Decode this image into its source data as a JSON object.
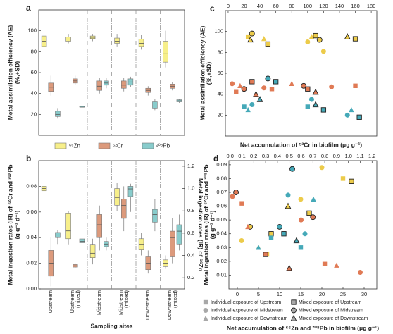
{
  "chart_data": [
    {
      "type": "box",
      "panel_label": "a",
      "ylabel": [
        "Metal assimilation efficiency (AE)",
        "(%,+SD)"
      ],
      "ylim": [
        0,
        120
      ],
      "yticks": [
        20,
        40,
        60,
        80,
        100
      ],
      "series": [
        {
          "name": "⁶⁶Zn",
          "color": "#f7ef8a",
          "values": [
            [
              82,
              85,
              90,
              95,
              100
            ],
            [
              88,
              90,
              92,
              94,
              97
            ],
            [
              90,
              92,
              93,
              95,
              97
            ],
            [
              85,
              88,
              90,
              93,
              97
            ],
            [
              82,
              85,
              88,
              92,
              96
            ],
            [
              65,
              70,
              78,
              90,
              100
            ]
          ]
        },
        {
          "name": "⁵²Cr",
          "color": "#dc9a7c",
          "values": [
            [
              38,
              42,
              46,
              50,
              57
            ],
            [
              48,
              50,
              52,
              54,
              57
            ],
            [
              40,
              43,
              47,
              52,
              55
            ],
            [
              42,
              45,
              48,
              52,
              55
            ],
            [
              38,
              41,
              43,
              45,
              47
            ],
            [
              43,
              45,
              47,
              49,
              51
            ]
          ]
        },
        {
          "name": "²⁰⁸Pb",
          "color": "#88cccc",
          "values": [
            [
              16,
              18,
              20,
              23,
              26
            ],
            [
              26,
              27,
              27,
              28,
              29
            ],
            [
              45,
              48,
              50,
              52,
              55
            ],
            [
              46,
              48,
              51,
              54,
              56
            ],
            [
              24,
              26,
              28,
              32,
              35
            ],
            [
              31,
              32,
              33,
              34,
              35
            ]
          ]
        }
      ]
    },
    {
      "type": "box",
      "panel_label": "b",
      "ylabel": [
        "Metal ingestion rates (IR) of ⁵²Cr and ²⁰⁸Pb",
        "(g g⁻¹ d⁻¹)"
      ],
      "y2label": "Metal ingestion rates (IR) of ⁶⁶Zn",
      "xlabel": "Sampling sites",
      "categories": [
        "Upstream",
        "Upstream (mixed)",
        "Midstream",
        "Midstream (mixed)",
        "Downstream",
        "Downstream (mixed)"
      ],
      "ylim": [
        0,
        0.1
      ],
      "yticks": [
        {
          "value": 0,
          "label": "0.00"
        },
        {
          "value": 0.02,
          "label": "0.02"
        },
        {
          "value": 0.04,
          "label": "0.04"
        },
        {
          "value": 0.06,
          "label": "0.06"
        },
        {
          "value": 0.08,
          "label": "0.08"
        }
      ],
      "y2lim": [
        0.1,
        1.25
      ],
      "y2ticks": [
        0.2,
        0.4,
        0.6,
        0.8,
        {
          "value": 1,
          "label": "1.0"
        },
        1.2
      ],
      "series": [
        {
          "color": "#f7ef8a",
          "axis": "y2",
          "values": [
            [
              0.96,
              0.98,
              1.0,
              1.02,
              1.08
            ],
            [
              0.5,
              0.55,
              0.62,
              0.78,
              0.8
            ],
            [
              0.32,
              0.38,
              0.42,
              0.5,
              0.55
            ],
            [
              0.8,
              0.85,
              0.92,
              1.0,
              1.05
            ],
            [
              0.4,
              0.45,
              0.5,
              0.55,
              0.6
            ],
            [
              0.28,
              0.3,
              0.33,
              0.36,
              0.4
            ]
          ]
        },
        {
          "color": "#dc9a7c",
          "values": [
            [
              0.002,
              0.01,
              0.02,
              0.03,
              0.04
            ],
            [
              0.016,
              0.017,
              0.018,
              0.019,
              0.02
            ],
            [
              0.03,
              0.04,
              0.05,
              0.058,
              0.065
            ],
            [
              0.045,
              0.055,
              0.065,
              0.07,
              0.08
            ],
            [
              0.012,
              0.015,
              0.02,
              0.025,
              0.03
            ],
            [
              0.02,
              0.025,
              0.04,
              0.045,
              0.055
            ]
          ]
        },
        {
          "color": "#88cccc",
          "values": [
            [
              0.035,
              0.04,
              0.042,
              0.044,
              0.046
            ],
            [
              0.035,
              0.036,
              0.037,
              0.039,
              0.04
            ],
            [
              0.03,
              0.033,
              0.035,
              0.037,
              0.04
            ],
            [
              0.06,
              0.072,
              0.078,
              0.08,
              0.082
            ],
            [
              0.045,
              0.052,
              0.058,
              0.062,
              0.07
            ],
            [
              0.03,
              0.035,
              0.045,
              0.05,
              0.058
            ]
          ]
        }
      ]
    },
    {
      "type": "scatter",
      "panel_label": "c",
      "ylabel": [
        "Metal assimilation efficiency (AE)",
        "(%,+SD)"
      ],
      "xlabel": "Net accumulation of ⁵²Cr in biofilm (μg g⁻¹)",
      "xaxis_position": "top",
      "xlim": [
        -3.5,
        187
      ],
      "xticks": [
        0,
        20,
        40,
        60,
        80,
        100,
        120,
        140,
        160,
        180
      ],
      "ylim": [
        0,
        120
      ],
      "yticks": [
        20,
        40,
        60,
        80,
        100
      ],
      "series": [
        {
          "color": "#eccb4a",
          "x": [
            25,
            28,
            30,
            45,
            50,
            100,
            105,
            110,
            115,
            120,
            150,
            160
          ],
          "values": [
            95,
            92,
            98,
            93,
            88,
            90,
            95,
            96,
            92,
            81,
            95,
            93
          ],
          "markers": [
            "square",
            "triangle-mixed",
            "circle-mixed",
            "triangle",
            "square-mixed",
            "circle",
            "triangle",
            "square-mixed",
            "circle-mixed",
            "circle",
            "triangle-mixed",
            "square-mixed"
          ]
        },
        {
          "color": "#e07a55",
          "x": [
            5,
            10,
            15,
            20,
            30,
            35,
            45,
            55,
            80,
            95,
            100,
            110,
            130,
            160
          ],
          "values": [
            50,
            42,
            48,
            45,
            52,
            40,
            46,
            45,
            50,
            48,
            45,
            42,
            47,
            48
          ],
          "markers": [
            "circle",
            "square",
            "triangle",
            "circle-mixed",
            "square-mixed",
            "triangle-mixed",
            "circle",
            "square",
            "triangle",
            "circle-mixed",
            "square-mixed",
            "triangle-mixed",
            "circle",
            "square"
          ]
        },
        {
          "color": "#45a9b8",
          "x": [
            20,
            25,
            30,
            40,
            50,
            60,
            100,
            105,
            110,
            120,
            150,
            155,
            165
          ],
          "values": [
            28,
            25,
            30,
            35,
            55,
            52,
            28,
            35,
            30,
            25,
            20,
            25,
            18
          ],
          "markers": [
            "square",
            "triangle",
            "circle",
            "triangle-mixed",
            "circle-mixed",
            "square-mixed",
            "square",
            "circle",
            "triangle-mixed",
            "square-mixed",
            "circle",
            "triangle",
            "square-mixed"
          ]
        }
      ]
    },
    {
      "type": "scatter",
      "panel_label": "d",
      "ylabel": [
        "Metal ingestion rates (IR) of ⁵²Cr and ²⁰⁸Pb",
        "(g g⁻¹ d⁻¹)"
      ],
      "xlabel": "Net accumulation of ⁶⁶Zn and ²⁰⁸Pb in biofilm (μg g⁻¹)",
      "xlim": [
        -2,
        33
      ],
      "xticks": [
        0,
        5,
        10,
        15,
        20,
        25,
        30
      ],
      "x2lim": [
        -0.01,
        1.24
      ],
      "x2ticks": [
        {
          "value": 0,
          "label": "0.0"
        },
        0.1,
        0.2,
        0.3,
        0.4,
        0.5,
        0.6,
        0.7,
        0.8,
        0.9,
        {
          "value": 1,
          "label": "1.0"
        },
        1.1,
        1.2
      ],
      "ylim": [
        0,
        0.093
      ],
      "yticks": [
        0.01,
        0.02,
        0.03,
        0.04,
        0.05,
        0.06,
        0.07,
        0.08,
        0.09
      ],
      "legend": [
        {
          "label": "Individual exposure of Upstream",
          "marker": "square"
        },
        {
          "label": "Individual exposure of Midstream",
          "marker": "circle"
        },
        {
          "label": "Individual exposure of Downstream",
          "marker": "triangle"
        },
        {
          "label": "Mixed exposure of Upstream",
          "marker": "square-mixed"
        },
        {
          "label": "Mixed exposure of Midstream",
          "marker": "circle-mixed"
        },
        {
          "label": "Mixed exposure of Downstream",
          "marker": "triangle-mixed"
        }
      ],
      "series": [
        {
          "color": "#eccb4a",
          "x": [
            1,
            3,
            5,
            7,
            8,
            12,
            15,
            17,
            20,
            25,
            27
          ],
          "values": [
            0.035,
            0.045,
            0.03,
            0.025,
            0.04,
            0.06,
            0.065,
            0.055,
            0.088,
            0.08,
            0.078
          ],
          "markers": [
            "circle",
            "circle-mixed",
            "triangle",
            "square",
            "square-mixed",
            "triangle-mixed",
            "circle",
            "square-mixed",
            "circle",
            "square",
            "square-mixed"
          ]
        },
        {
          "color": "#e07a55",
          "axis": "x2",
          "x": [
            0.02,
            0.05,
            0.1,
            0.15,
            0.3,
            0.5,
            0.6,
            0.7,
            0.8,
            0.9,
            1.1
          ],
          "values": [
            0.067,
            0.07,
            0.062,
            0.045,
            0.025,
            0.015,
            0.05,
            0.052,
            0.018,
            0.017,
            0.012
          ],
          "markers": [
            "circle",
            "circle-mixed",
            "square",
            "triangle",
            "square-mixed",
            "triangle-mixed",
            "circle",
            "circle-mixed",
            "square",
            "triangle",
            "circle"
          ]
        },
        {
          "color": "#45a9b8",
          "x": [
            5,
            8,
            10,
            11,
            12,
            13,
            14,
            15,
            16,
            18
          ],
          "values": [
            0.03,
            0.037,
            0.045,
            0.04,
            0.068,
            0.087,
            0.035,
            0.03,
            0.04,
            0.065
          ],
          "markers": [
            "triangle",
            "square",
            "circle-mixed",
            "square-mixed",
            "circle",
            "circle-mixed",
            "triangle-mixed",
            "square",
            "circle",
            "triangle"
          ]
        }
      ]
    }
  ]
}
